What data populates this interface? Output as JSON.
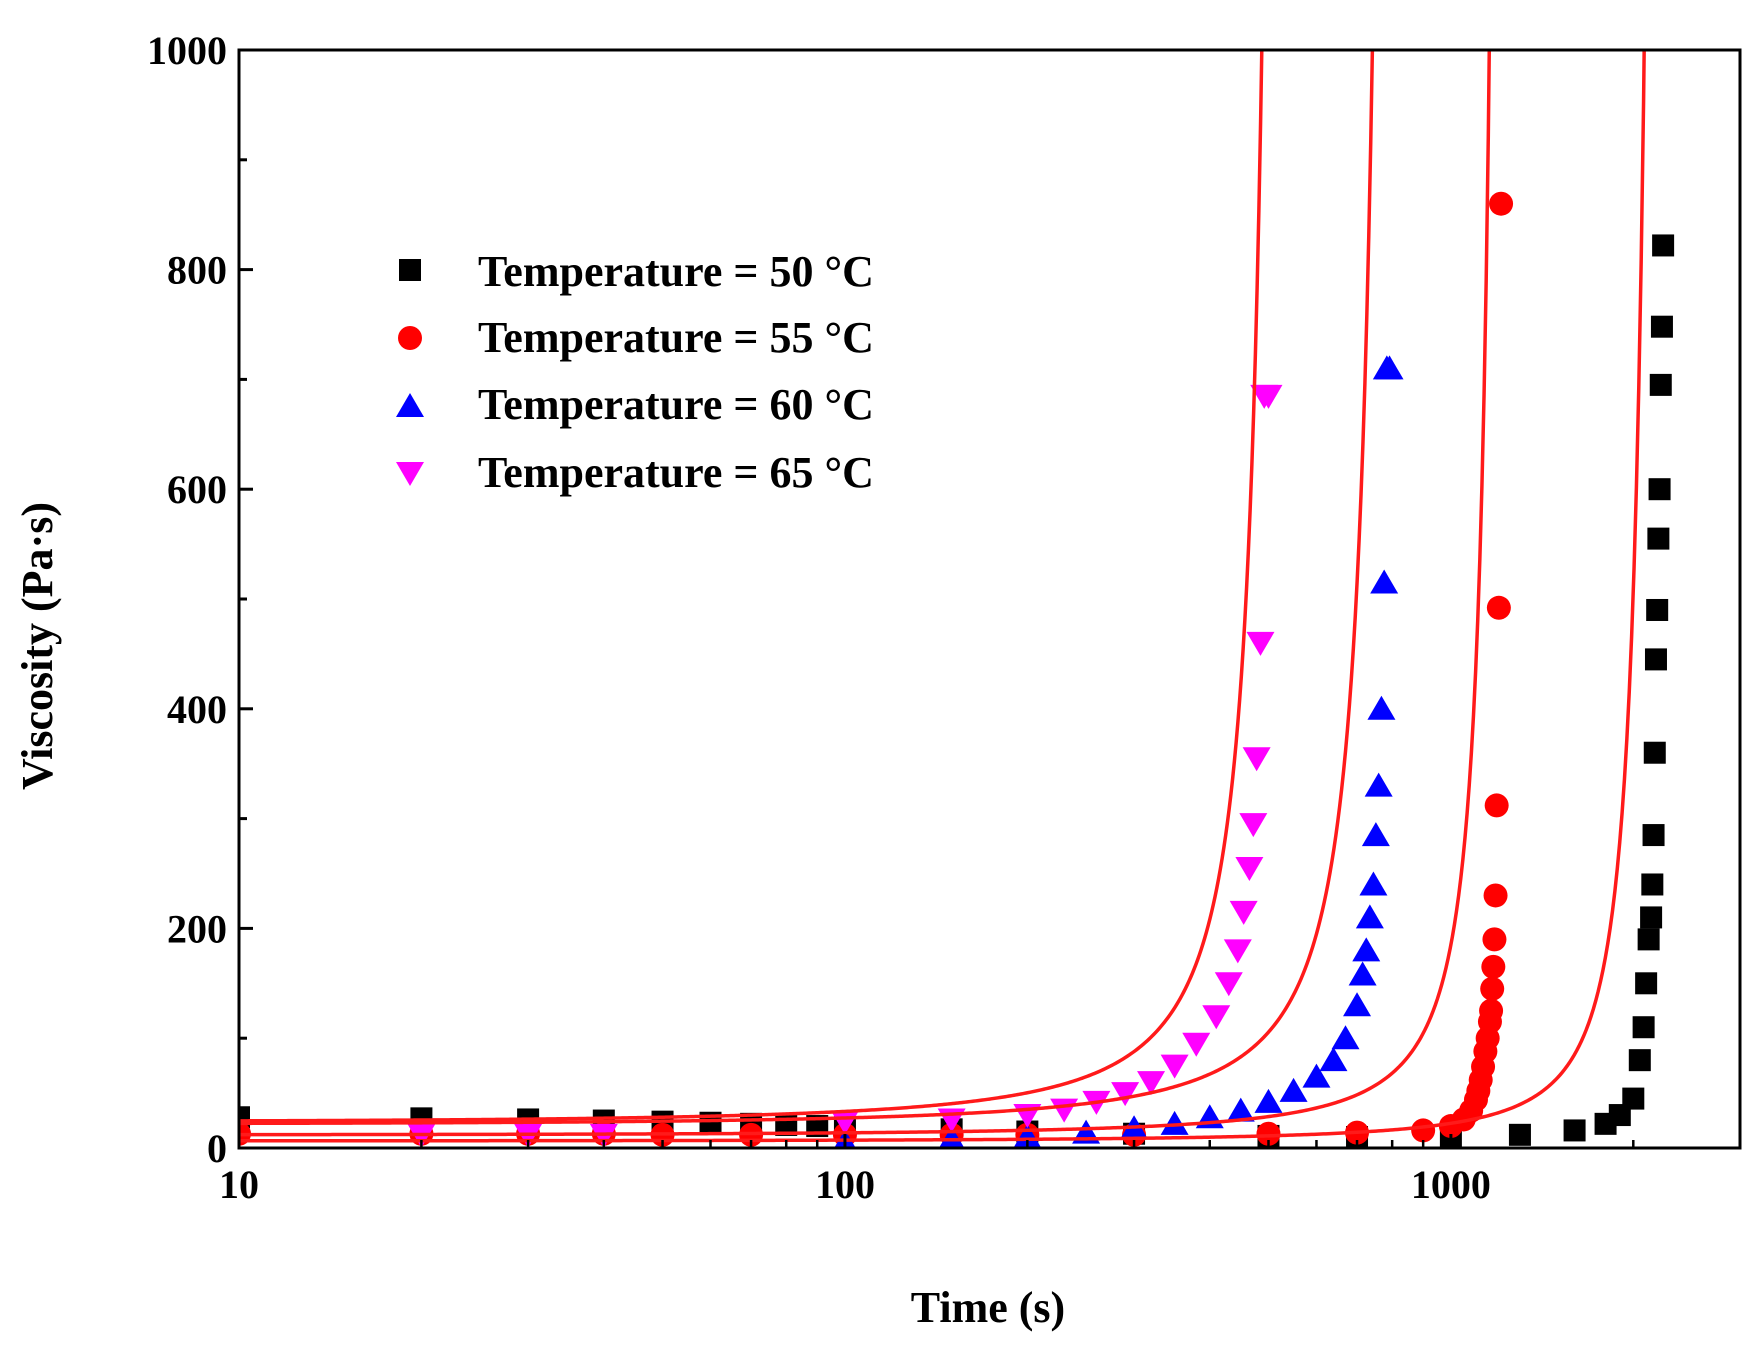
{
  "chart_data": {
    "type": "scatter",
    "title": "",
    "xlabel": "Time (s)",
    "ylabel": "Viscosity (Pa·s)",
    "xscale": "log",
    "xlim": [
      10,
      3000
    ],
    "ylim": [
      0,
      1000
    ],
    "x_ticks": [
      10,
      100,
      1000
    ],
    "x_tick_labels": [
      "10",
      "100",
      "1000"
    ],
    "y_ticks": [
      0,
      200,
      400,
      600,
      800,
      1000
    ],
    "y_tick_labels": [
      "0",
      "200",
      "400",
      "600",
      "800",
      "1000"
    ],
    "legend_position": "upper-left",
    "fit_line_color": "#ff1a1a",
    "series": [
      {
        "name": "Temperature = 50 °C",
        "marker": "square",
        "color": "#000000",
        "x": [
          10,
          20,
          30,
          40,
          50,
          60,
          70,
          80,
          90,
          100,
          150,
          200,
          300,
          500,
          700,
          1000,
          1300,
          1600,
          1800,
          1900,
          2000,
          2050,
          2080,
          2100,
          2120,
          2140,
          2150,
          2160,
          2170,
          2180,
          2190,
          2200,
          2210,
          2220,
          2230,
          2240
        ],
        "y": [
          28,
          27,
          26,
          25,
          24,
          23,
          22,
          21,
          20,
          19,
          17,
          15,
          13,
          11,
          10,
          9,
          12,
          16,
          22,
          30,
          45,
          80,
          110,
          150,
          190,
          210,
          240,
          285,
          360,
          445,
          490,
          555,
          600,
          695,
          748,
          822
        ],
        "fit": {
          "a": 6.5,
          "t_gel": 2320,
          "n": 2.2
        }
      },
      {
        "name": "Temperature = 55 °C",
        "marker": "circle",
        "color": "#ff0000",
        "x": [
          10,
          20,
          30,
          40,
          50,
          70,
          100,
          150,
          200,
          300,
          500,
          700,
          900,
          1000,
          1050,
          1080,
          1100,
          1110,
          1120,
          1130,
          1140,
          1150,
          1160,
          1165,
          1170,
          1175,
          1180,
          1185,
          1190,
          1200,
          1210
        ],
        "y": [
          13,
          13,
          13,
          13,
          12,
          12,
          12,
          12,
          12,
          12,
          13,
          14,
          16,
          20,
          26,
          34,
          44,
          52,
          62,
          74,
          88,
          100,
          115,
          125,
          145,
          165,
          190,
          230,
          312,
          492,
          860
        ],
        "fit": {
          "a": 12,
          "t_gel": 1250,
          "n": 1.7
        }
      },
      {
        "name": "Temperature = 60 °C",
        "marker": "triangle-up",
        "color": "#0000ff",
        "x": [
          100,
          150,
          200,
          250,
          300,
          350,
          400,
          450,
          500,
          550,
          600,
          640,
          670,
          700,
          715,
          725,
          735,
          745,
          752,
          760,
          768,
          776,
          784,
          792
        ],
        "y": [
          5,
          8,
          10,
          14,
          18,
          22,
          28,
          34,
          42,
          52,
          65,
          80,
          100,
          130,
          158,
          180,
          210,
          240,
          285,
          330,
          400,
          515,
          710,
          710
        ],
        "fit": {
          "a": 22,
          "t_gel": 830,
          "n": 1.7
        }
      },
      {
        "name": "Temperature = 65 °C",
        "marker": "triangle-down",
        "color": "#ff00ff",
        "x": [
          20,
          30,
          40,
          100,
          150,
          200,
          230,
          260,
          290,
          320,
          350,
          380,
          410,
          430,
          445,
          455,
          465,
          472,
          478,
          485,
          492,
          500
        ],
        "y": [
          12,
          12,
          12,
          24,
          26,
          30,
          35,
          42,
          50,
          60,
          75,
          95,
          120,
          150,
          180,
          215,
          255,
          295,
          355,
          460,
          685,
          685
        ],
        "fit": {
          "a": 24,
          "t_gel": 540,
          "n": 1.6
        }
      }
    ]
  }
}
